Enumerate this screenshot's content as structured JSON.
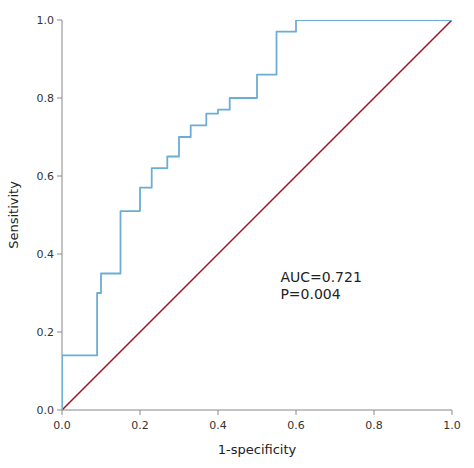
{
  "chart_data": {
    "type": "line",
    "x_label": "1-specificity",
    "y_label": "Sensitivity",
    "annotation": "AUC=0.721\nP=0.004",
    "series": [
      {
        "color": "#a01020",
        "x": [
          0.0,
          1.0
        ],
        "values": [
          0.0,
          1.0
        ]
      },
      {
        "color": "#6aaed6",
        "x": [
          0.0,
          0.0,
          0.09,
          0.09,
          0.1,
          0.1,
          0.15,
          0.15,
          0.2,
          0.2,
          0.23,
          0.23,
          0.27,
          0.27,
          0.3,
          0.3,
          0.33,
          0.33,
          0.37,
          0.37,
          0.4,
          0.4,
          0.43,
          0.43,
          0.5,
          0.5,
          0.55,
          0.55,
          0.6,
          0.6,
          0.63,
          0.63,
          1.0
        ],
        "values": [
          0.0,
          0.14,
          0.14,
          0.3,
          0.3,
          0.35,
          0.35,
          0.51,
          0.51,
          0.57,
          0.57,
          0.62,
          0.62,
          0.65,
          0.65,
          0.7,
          0.7,
          0.73,
          0.73,
          0.76,
          0.76,
          0.77,
          0.77,
          0.8,
          0.8,
          0.86,
          0.86,
          0.97,
          0.97,
          1.0,
          1.0,
          1.0,
          1.0
        ]
      }
    ],
    "xlim": [
      0.0,
      1.0
    ],
    "ylim": [
      0.0,
      1.0
    ],
    "xticks": [
      {
        "value": 0.0,
        "label": "0.0"
      },
      {
        "value": 0.2,
        "label": "0.2"
      },
      {
        "value": 0.4,
        "label": "0.4"
      },
      {
        "value": 0.6,
        "label": "0.6"
      },
      {
        "value": 0.8,
        "label": "0.8"
      },
      {
        "value": 1.0,
        "label": "1.0"
      }
    ],
    "yticks": [
      {
        "value": 0.0,
        "label": "0.0"
      },
      {
        "value": 0.2,
        "label": "0.2"
      },
      {
        "value": 0.4,
        "label": "0.4"
      },
      {
        "value": 0.6,
        "label": "0.6"
      },
      {
        "value": 0.8,
        "label": "0.8"
      },
      {
        "value": 1.0,
        "label": "1.0"
      }
    ],
    "grid": false
  }
}
